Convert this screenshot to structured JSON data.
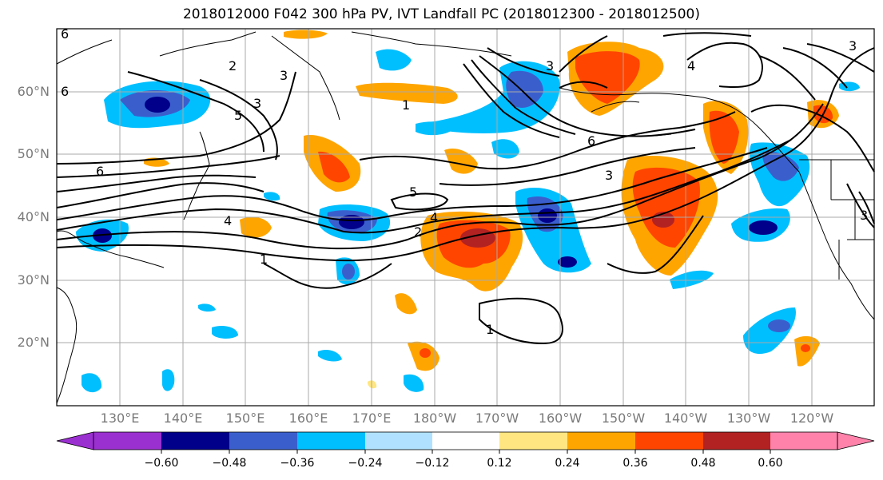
{
  "title": "2018012000 F042 300 hPa PV, IVT Landfall PC (2018012300 - 2018012500)",
  "lat_labels": [
    "60°N",
    "50°N",
    "40°N",
    "30°N",
    "20°N"
  ],
  "lon_labels": [
    "130°E",
    "140°E",
    "150°E",
    "160°E",
    "170°E",
    "180°W",
    "170°W",
    "160°W",
    "150°W",
    "140°W",
    "130°W",
    "120°W"
  ],
  "contour_labels": [
    "6",
    "2",
    "3",
    "5",
    "3",
    "1",
    "3",
    "4",
    "6",
    "6",
    "3",
    "5",
    "4",
    "2",
    "1",
    "1",
    "6",
    "3",
    "3",
    "4"
  ],
  "colorbar": {
    "ticks": [
      "−0.60",
      "−0.48",
      "−0.36",
      "−0.24",
      "−0.12",
      "0.12",
      "0.24",
      "0.36",
      "0.48",
      "0.60"
    ],
    "colors": [
      "#9b30d0",
      "#00008b",
      "#3a5fcd",
      "#00bfff",
      "#b0e2ff",
      "#ffffff",
      "#ffe680",
      "#ffa500",
      "#ff4500",
      "#b22222",
      "#ff82ab"
    ]
  },
  "colors": {
    "neg_strong": "#00008b",
    "neg_mid": "#3a5fcd",
    "neg_light": "#00bfff",
    "pos_light": "#ffa500",
    "pos_mid": "#ff4500",
    "pos_strong": "#b22222",
    "grid": "#a9a9a9"
  }
}
